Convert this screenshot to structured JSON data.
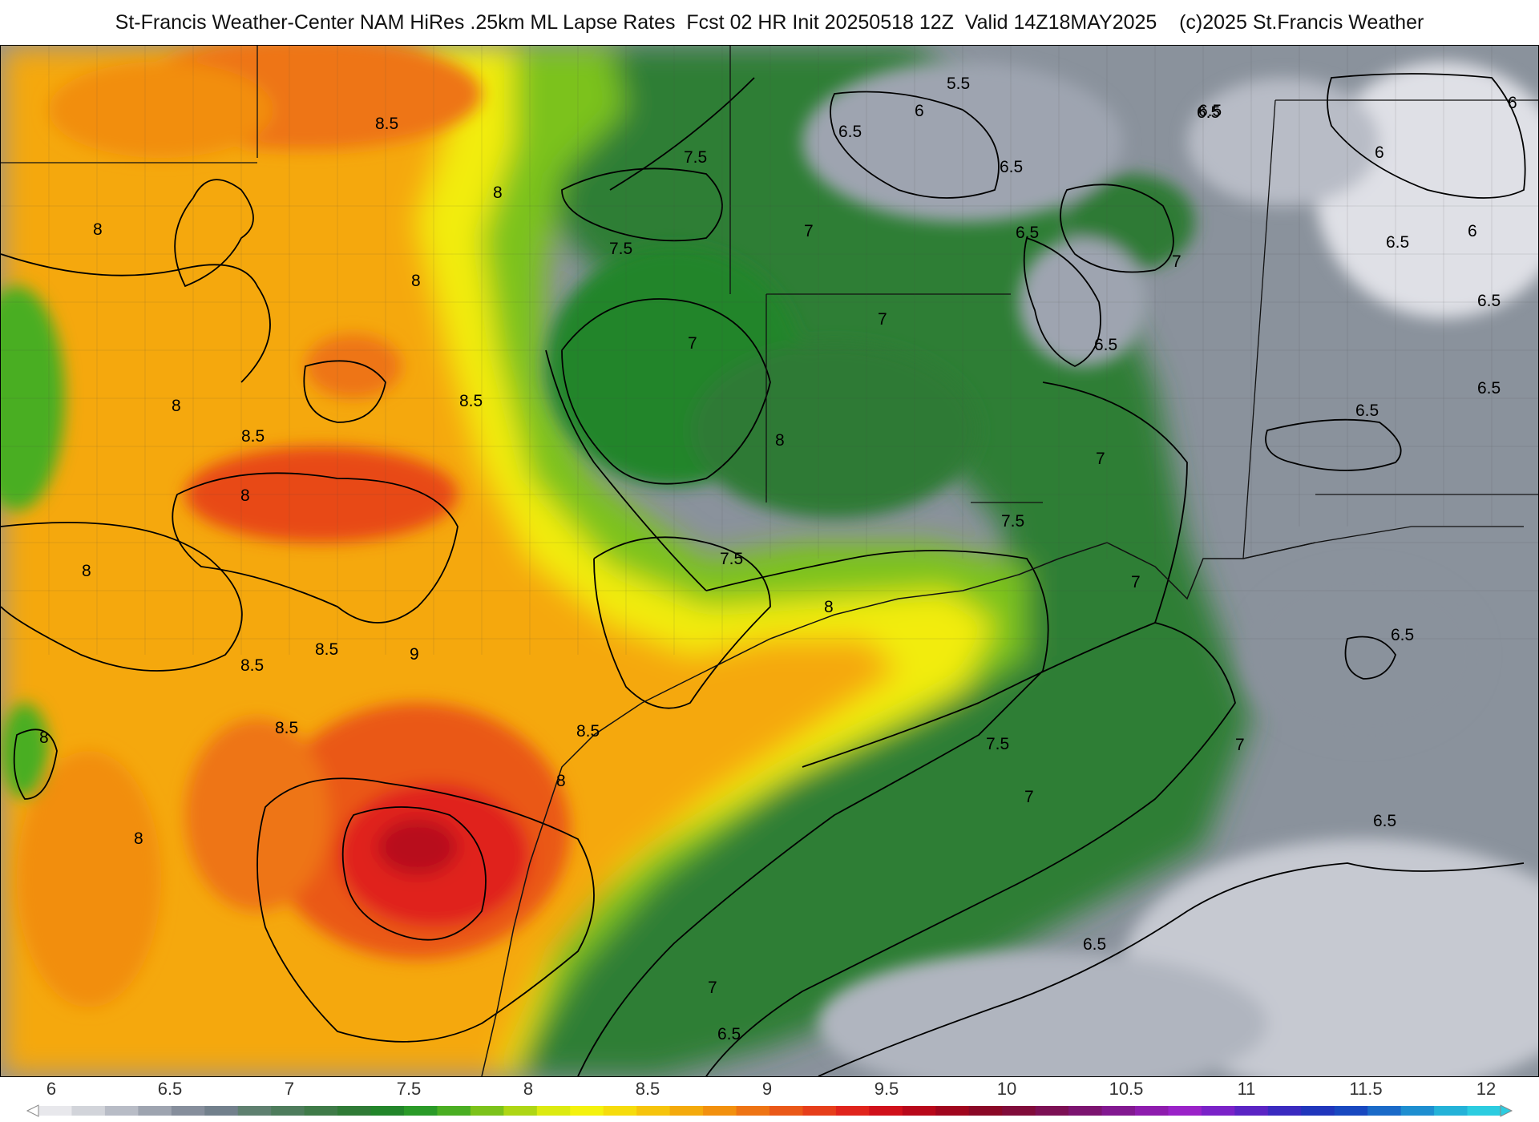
{
  "title": "St-Francis Weather-Center NAM HiRes .25km ML Lapse Rates  Fcst 02 HR Init 20250518 12Z  Valid 14Z18MAY2025    (c)2025 St.Francis Weather",
  "colorbar": {
    "ticks": [
      "6",
      "6.5",
      "7",
      "7.5",
      "8",
      "8.5",
      "9",
      "9.5",
      "10",
      "10.5",
      "11",
      "11.5",
      "12"
    ],
    "colors": [
      "#e8e8ec",
      "#d2d4da",
      "#b8bcc6",
      "#9ea4b0",
      "#868e9c",
      "#72808c",
      "#5f8070",
      "#4e7c5c",
      "#3f7a48",
      "#2f7a36",
      "#22852a",
      "#2a9a28",
      "#4aae22",
      "#7cc21a",
      "#aed614",
      "#dcea10",
      "#f4f20e",
      "#f6dc0c",
      "#f6c40c",
      "#f4aa0c",
      "#f2900e",
      "#ee7414",
      "#ea5818",
      "#e63e1a",
      "#e0241c",
      "#d0101a",
      "#b8081a",
      "#a0061e",
      "#8a0826",
      "#800c3a",
      "#7c1054",
      "#7c1470",
      "#821890",
      "#8e1cae",
      "#9a22c8",
      "#7a22c8",
      "#5a24c4",
      "#3a2ac0",
      "#2036bc",
      "#1848c0",
      "#1a6ac8",
      "#1e8ed0",
      "#24b2d8",
      "#2ccce0"
    ]
  },
  "contour_labels": [
    {
      "text": "8.5"
    },
    {
      "text": "8"
    },
    {
      "text": "8"
    },
    {
      "text": "8"
    },
    {
      "text": "8.5"
    },
    {
      "text": "8.5"
    },
    {
      "text": "8"
    },
    {
      "text": "8"
    },
    {
      "text": "8"
    },
    {
      "text": "8.5"
    },
    {
      "text": "8.5"
    },
    {
      "text": "9"
    },
    {
      "text": "8.5"
    },
    {
      "text": "8.5"
    },
    {
      "text": "8"
    },
    {
      "text": "8"
    },
    {
      "text": "8"
    },
    {
      "text": "8"
    },
    {
      "text": "8"
    },
    {
      "text": "7.5"
    },
    {
      "text": "7.5"
    },
    {
      "text": "7"
    },
    {
      "text": "7.5"
    },
    {
      "text": "7"
    },
    {
      "text": "7"
    },
    {
      "text": "7.5"
    },
    {
      "text": "7"
    },
    {
      "text": "7"
    },
    {
      "text": "7.5"
    },
    {
      "text": "7"
    },
    {
      "text": "7"
    },
    {
      "text": "6.5"
    },
    {
      "text": "6"
    },
    {
      "text": "5.5"
    },
    {
      "text": "6.5"
    },
    {
      "text": "6.5"
    },
    {
      "text": "6.5"
    },
    {
      "text": "6.5"
    },
    {
      "text": "6"
    },
    {
      "text": "6"
    },
    {
      "text": "6.5"
    },
    {
      "text": "6"
    },
    {
      "text": "6.5"
    },
    {
      "text": "6.5"
    },
    {
      "text": "6.5"
    },
    {
      "text": "6.5"
    },
    {
      "text": "6.5"
    },
    {
      "text": "6.5"
    },
    {
      "text": "6.5"
    },
    {
      "text": "7"
    },
    {
      "text": "6.5"
    },
    {
      "text": "7"
    }
  ]
}
